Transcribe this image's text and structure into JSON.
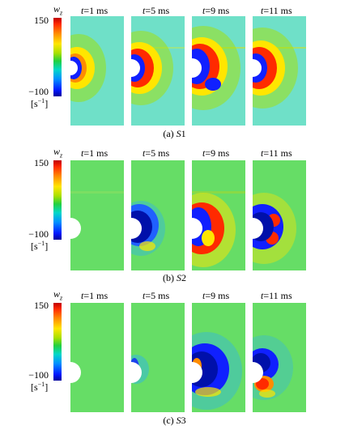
{
  "colorbar": {
    "symbol": "w",
    "symbol_sub": "z",
    "max_label": "150",
    "min_label": "−100",
    "unit_base": "[s",
    "unit_sup": "−1",
    "unit_close": "]",
    "colors": [
      "#c00000",
      "#ff2a00",
      "#ffe600",
      "#22d040",
      "#00d8c8",
      "#0018ff",
      "#000099"
    ]
  },
  "time_labels": [
    {
      "t": "t",
      "value": "=1 ms"
    },
    {
      "t": "t",
      "value": "=5 ms"
    },
    {
      "t": "t",
      "value": "=9 ms"
    },
    {
      "t": "t",
      "value": "=11 ms"
    }
  ],
  "rows": [
    {
      "caption_prefix": "(a) ",
      "caption_italic": "S",
      "caption_suffix": "1"
    },
    {
      "caption_prefix": "(b) ",
      "caption_italic": "S",
      "caption_suffix": "2"
    },
    {
      "caption_prefix": "(c) ",
      "caption_italic": "S",
      "caption_suffix": "3"
    }
  ]
}
